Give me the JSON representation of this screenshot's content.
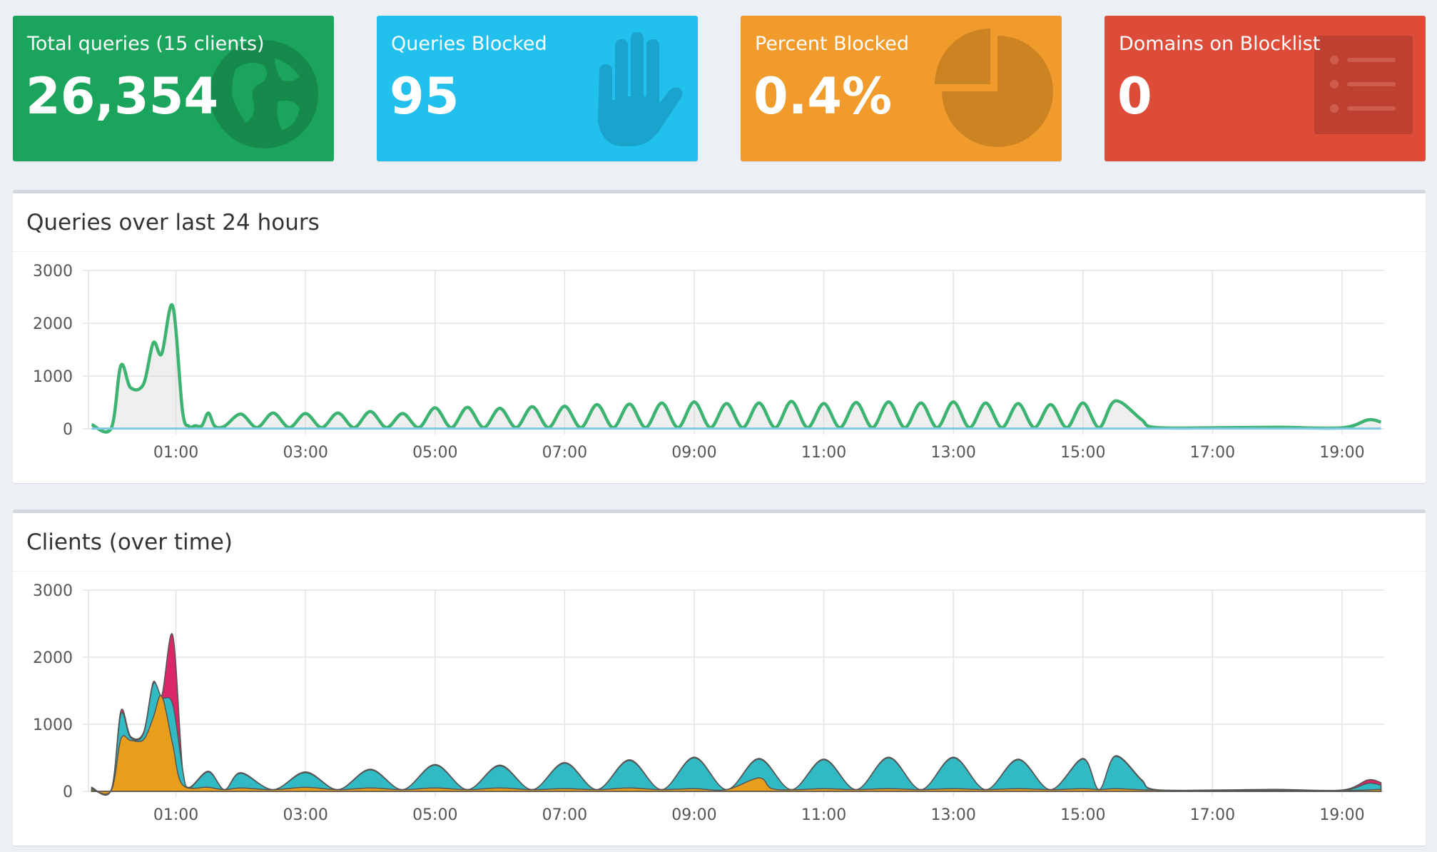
{
  "stats": {
    "total": {
      "label": "Total queries (15 clients)",
      "value": "26,354",
      "icon": "globe-icon",
      "color": "#1ba55c"
    },
    "blocked": {
      "label": "Queries Blocked",
      "value": "95",
      "icon": "hand-icon",
      "color": "#21c0ed"
    },
    "percent": {
      "label": "Percent Blocked",
      "value": "0.4%",
      "icon": "pie-chart-icon",
      "color": "#f09b2c"
    },
    "domains": {
      "label": "Domains on Blocklist",
      "value": "0",
      "icon": "list-icon",
      "color": "#dd4b39"
    }
  },
  "panels": {
    "queries_title": "Queries over last 24 hours",
    "clients_title": "Clients (over time)"
  },
  "chart_data": [
    {
      "type": "area",
      "title": "Queries over last 24 hours",
      "ylim": [
        0,
        3000
      ],
      "yticks": [
        "3000",
        "2000",
        "1000",
        "0"
      ],
      "xticks": [
        "01:00",
        "03:00",
        "05:00",
        "07:00",
        "09:00",
        "11:00",
        "13:00",
        "15:00",
        "17:00",
        "19:00"
      ],
      "grid": true,
      "series": [
        {
          "color": "#3cb371",
          "points": [
            [
              -0.3,
              80
            ],
            [
              0,
              10
            ],
            [
              0.15,
              1200
            ],
            [
              0.3,
              780
            ],
            [
              0.5,
              850
            ],
            [
              0.65,
              1630
            ],
            [
              0.78,
              1420
            ],
            [
              0.95,
              2330
            ],
            [
              1.1,
              350
            ],
            [
              1.2,
              50
            ],
            [
              1.3,
              60
            ],
            [
              1.4,
              60
            ],
            [
              1.5,
              300
            ],
            [
              1.6,
              50
            ],
            [
              1.75,
              50
            ],
            [
              2,
              280
            ],
            [
              2.5,
              300
            ],
            [
              3,
              290
            ],
            [
              3.5,
              300
            ],
            [
              4,
              330
            ],
            [
              4.5,
              290
            ],
            [
              5,
              400
            ],
            [
              5.5,
              410
            ],
            [
              6,
              390
            ],
            [
              6.5,
              420
            ],
            [
              7,
              430
            ],
            [
              7.5,
              460
            ],
            [
              8,
              470
            ],
            [
              8.5,
              490
            ],
            [
              9,
              510
            ],
            [
              9.5,
              480
            ],
            [
              10,
              490
            ],
            [
              10.5,
              520
            ],
            [
              11,
              480
            ],
            [
              11.5,
              500
            ],
            [
              12,
              510
            ],
            [
              12.5,
              490
            ],
            [
              13,
              510
            ],
            [
              13.5,
              490
            ],
            [
              14,
              480
            ],
            [
              14.5,
              460
            ],
            [
              15,
              490
            ],
            [
              15.5,
              530
            ],
            [
              15.9,
              180
            ],
            [
              16.1,
              30
            ],
            [
              17,
              20
            ],
            [
              18,
              30
            ],
            [
              19,
              20
            ],
            [
              19.4,
              170
            ],
            [
              19.6,
              130
            ]
          ]
        },
        {
          "color": "#7ec8e3",
          "points": [
            [
              -0.3,
              5
            ],
            [
              19.6,
              5
            ]
          ]
        }
      ]
    },
    {
      "type": "area",
      "title": "Clients (over time)",
      "ylim": [
        0,
        3000
      ],
      "yticks": [
        "3000",
        "2000",
        "1000",
        "0"
      ],
      "xticks": [
        "01:00",
        "03:00",
        "05:00",
        "07:00",
        "09:00",
        "11:00",
        "13:00",
        "15:00",
        "17:00",
        "19:00"
      ],
      "grid": true,
      "series": [
        {
          "color": "#d81b60",
          "points": [
            [
              -0.3,
              60
            ],
            [
              0,
              20
            ],
            [
              0.15,
              1200
            ],
            [
              0.3,
              820
            ],
            [
              0.5,
              880
            ],
            [
              0.65,
              1630
            ],
            [
              0.78,
              1420
            ],
            [
              0.95,
              2330
            ],
            [
              1.1,
              350
            ],
            [
              1.2,
              60
            ],
            [
              1.5,
              300
            ],
            [
              2,
              280
            ],
            [
              3,
              290
            ],
            [
              4,
              330
            ],
            [
              5,
              400
            ],
            [
              6,
              390
            ],
            [
              7,
              430
            ],
            [
              8,
              470
            ],
            [
              9,
              510
            ],
            [
              10,
              490
            ],
            [
              11,
              480
            ],
            [
              12,
              510
            ],
            [
              13,
              510
            ],
            [
              14,
              480
            ],
            [
              15,
              490
            ],
            [
              15.5,
              530
            ],
            [
              15.9,
              180
            ],
            [
              16.1,
              30
            ],
            [
              17,
              20
            ],
            [
              18,
              30
            ],
            [
              19,
              20
            ],
            [
              19.4,
              170
            ],
            [
              19.6,
              130
            ]
          ]
        },
        {
          "color": "#28c2c8",
          "points": [
            [
              -0.3,
              50
            ],
            [
              0,
              20
            ],
            [
              0.15,
              1150
            ],
            [
              0.3,
              800
            ],
            [
              0.5,
              860
            ],
            [
              0.65,
              1600
            ],
            [
              0.78,
              1400
            ],
            [
              0.95,
              1300
            ],
            [
              1.1,
              340
            ],
            [
              1.2,
              50
            ],
            [
              1.5,
              290
            ],
            [
              2,
              270
            ],
            [
              3,
              280
            ],
            [
              4,
              320
            ],
            [
              5,
              390
            ],
            [
              6,
              380
            ],
            [
              7,
              420
            ],
            [
              8,
              460
            ],
            [
              9,
              500
            ],
            [
              10,
              480
            ],
            [
              11,
              470
            ],
            [
              12,
              500
            ],
            [
              13,
              500
            ],
            [
              14,
              470
            ],
            [
              15,
              480
            ],
            [
              15.5,
              520
            ],
            [
              15.9,
              170
            ],
            [
              16.1,
              25
            ],
            [
              17,
              15
            ],
            [
              18,
              25
            ],
            [
              19,
              15
            ],
            [
              19.4,
              120
            ],
            [
              19.6,
              90
            ]
          ]
        },
        {
          "color": "#f39c12",
          "points": [
            [
              -0.3,
              30
            ],
            [
              0,
              10
            ],
            [
              0.15,
              780
            ],
            [
              0.3,
              760
            ],
            [
              0.5,
              770
            ],
            [
              0.65,
              1100
            ],
            [
              0.78,
              1420
            ],
            [
              0.95,
              700
            ],
            [
              1.1,
              100
            ],
            [
              1.5,
              60
            ],
            [
              2,
              50
            ],
            [
              3,
              60
            ],
            [
              4,
              50
            ],
            [
              5,
              50
            ],
            [
              6,
              50
            ],
            [
              7,
              40
            ],
            [
              8,
              50
            ],
            [
              9,
              40
            ],
            [
              10,
              200
            ],
            [
              10.2,
              40
            ],
            [
              11,
              40
            ],
            [
              12,
              40
            ],
            [
              13,
              40
            ],
            [
              14,
              40
            ],
            [
              15,
              40
            ],
            [
              15.5,
              40
            ],
            [
              16,
              20
            ],
            [
              17,
              10
            ],
            [
              18,
              10
            ],
            [
              19,
              10
            ],
            [
              19.6,
              30
            ]
          ]
        }
      ]
    }
  ]
}
